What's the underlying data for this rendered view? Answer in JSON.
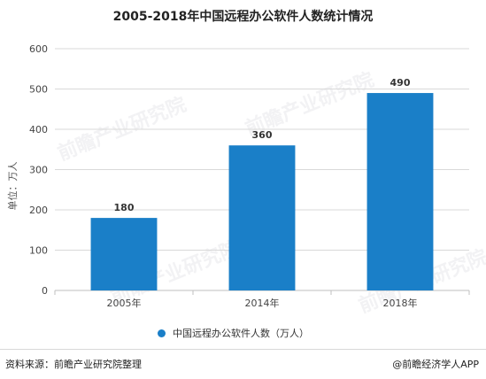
{
  "chart_data": {
    "type": "bar",
    "title": "2005-2018年中国远程办公软件人数统计情况",
    "ylabel": "单位：万人",
    "xlabel": "",
    "categories": [
      "2005年",
      "2014年",
      "2018年"
    ],
    "series": [
      {
        "name": "中国远程办公软件人数（万人）",
        "values": [
          180,
          360,
          490
        ]
      }
    ],
    "data_labels": [
      "180",
      "360",
      "490"
    ],
    "ylim": [
      0,
      600
    ],
    "yticks": [
      0,
      100,
      200,
      300,
      400,
      500,
      600
    ],
    "grid": true,
    "legend_position": "bottom",
    "bar_color": "#1a7fc8",
    "grid_color": "#d9d9d9"
  },
  "footer": {
    "source": "资料来源：前瞻产业研究院整理",
    "brand": "@前瞻经济学人APP"
  },
  "watermark": "前瞻产业研究院"
}
